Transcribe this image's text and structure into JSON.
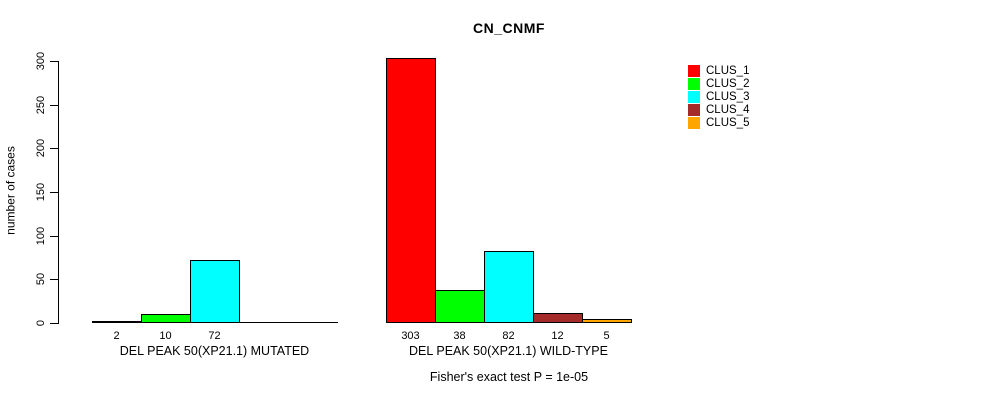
{
  "chart_data": {
    "type": "bar",
    "title": "CN_CNMF",
    "ylabel": "number of cases",
    "ylim": [
      0,
      300
    ],
    "yticks": [
      0,
      50,
      100,
      150,
      200,
      250,
      300
    ],
    "categories": [
      "CLUS_1",
      "CLUS_2",
      "CLUS_3",
      "CLUS_4",
      "CLUS_5"
    ],
    "colors": [
      "#FF0000",
      "#00FF00",
      "#00FFFF",
      "#A52A2A",
      "#FFA500"
    ],
    "groups": [
      {
        "label": "DEL PEAK 50(XP21.1) MUTATED",
        "values": [
          2,
          10,
          72,
          0,
          0
        ],
        "value_labels": [
          "2",
          "10",
          "72",
          "",
          ""
        ]
      },
      {
        "label": "DEL PEAK 50(XP21.1) WILD-TYPE",
        "values": [
          303,
          38,
          82,
          12,
          5
        ],
        "value_labels": [
          "303",
          "38",
          "82",
          "12",
          "5"
        ]
      }
    ],
    "legend": {
      "position": "right",
      "entries": [
        {
          "label": "CLUS_1",
          "color": "#FF0000"
        },
        {
          "label": "CLUS_2",
          "color": "#00FF00"
        },
        {
          "label": "CLUS_3",
          "color": "#00FFFF"
        },
        {
          "label": "CLUS_4",
          "color": "#A52A2A"
        },
        {
          "label": "CLUS_5",
          "color": "#FFA500"
        }
      ]
    },
    "annotation": "Fisher's exact test P = 1e-05",
    "grid": false,
    "background": "#FFFFFF",
    "text_color": "#000000"
  }
}
